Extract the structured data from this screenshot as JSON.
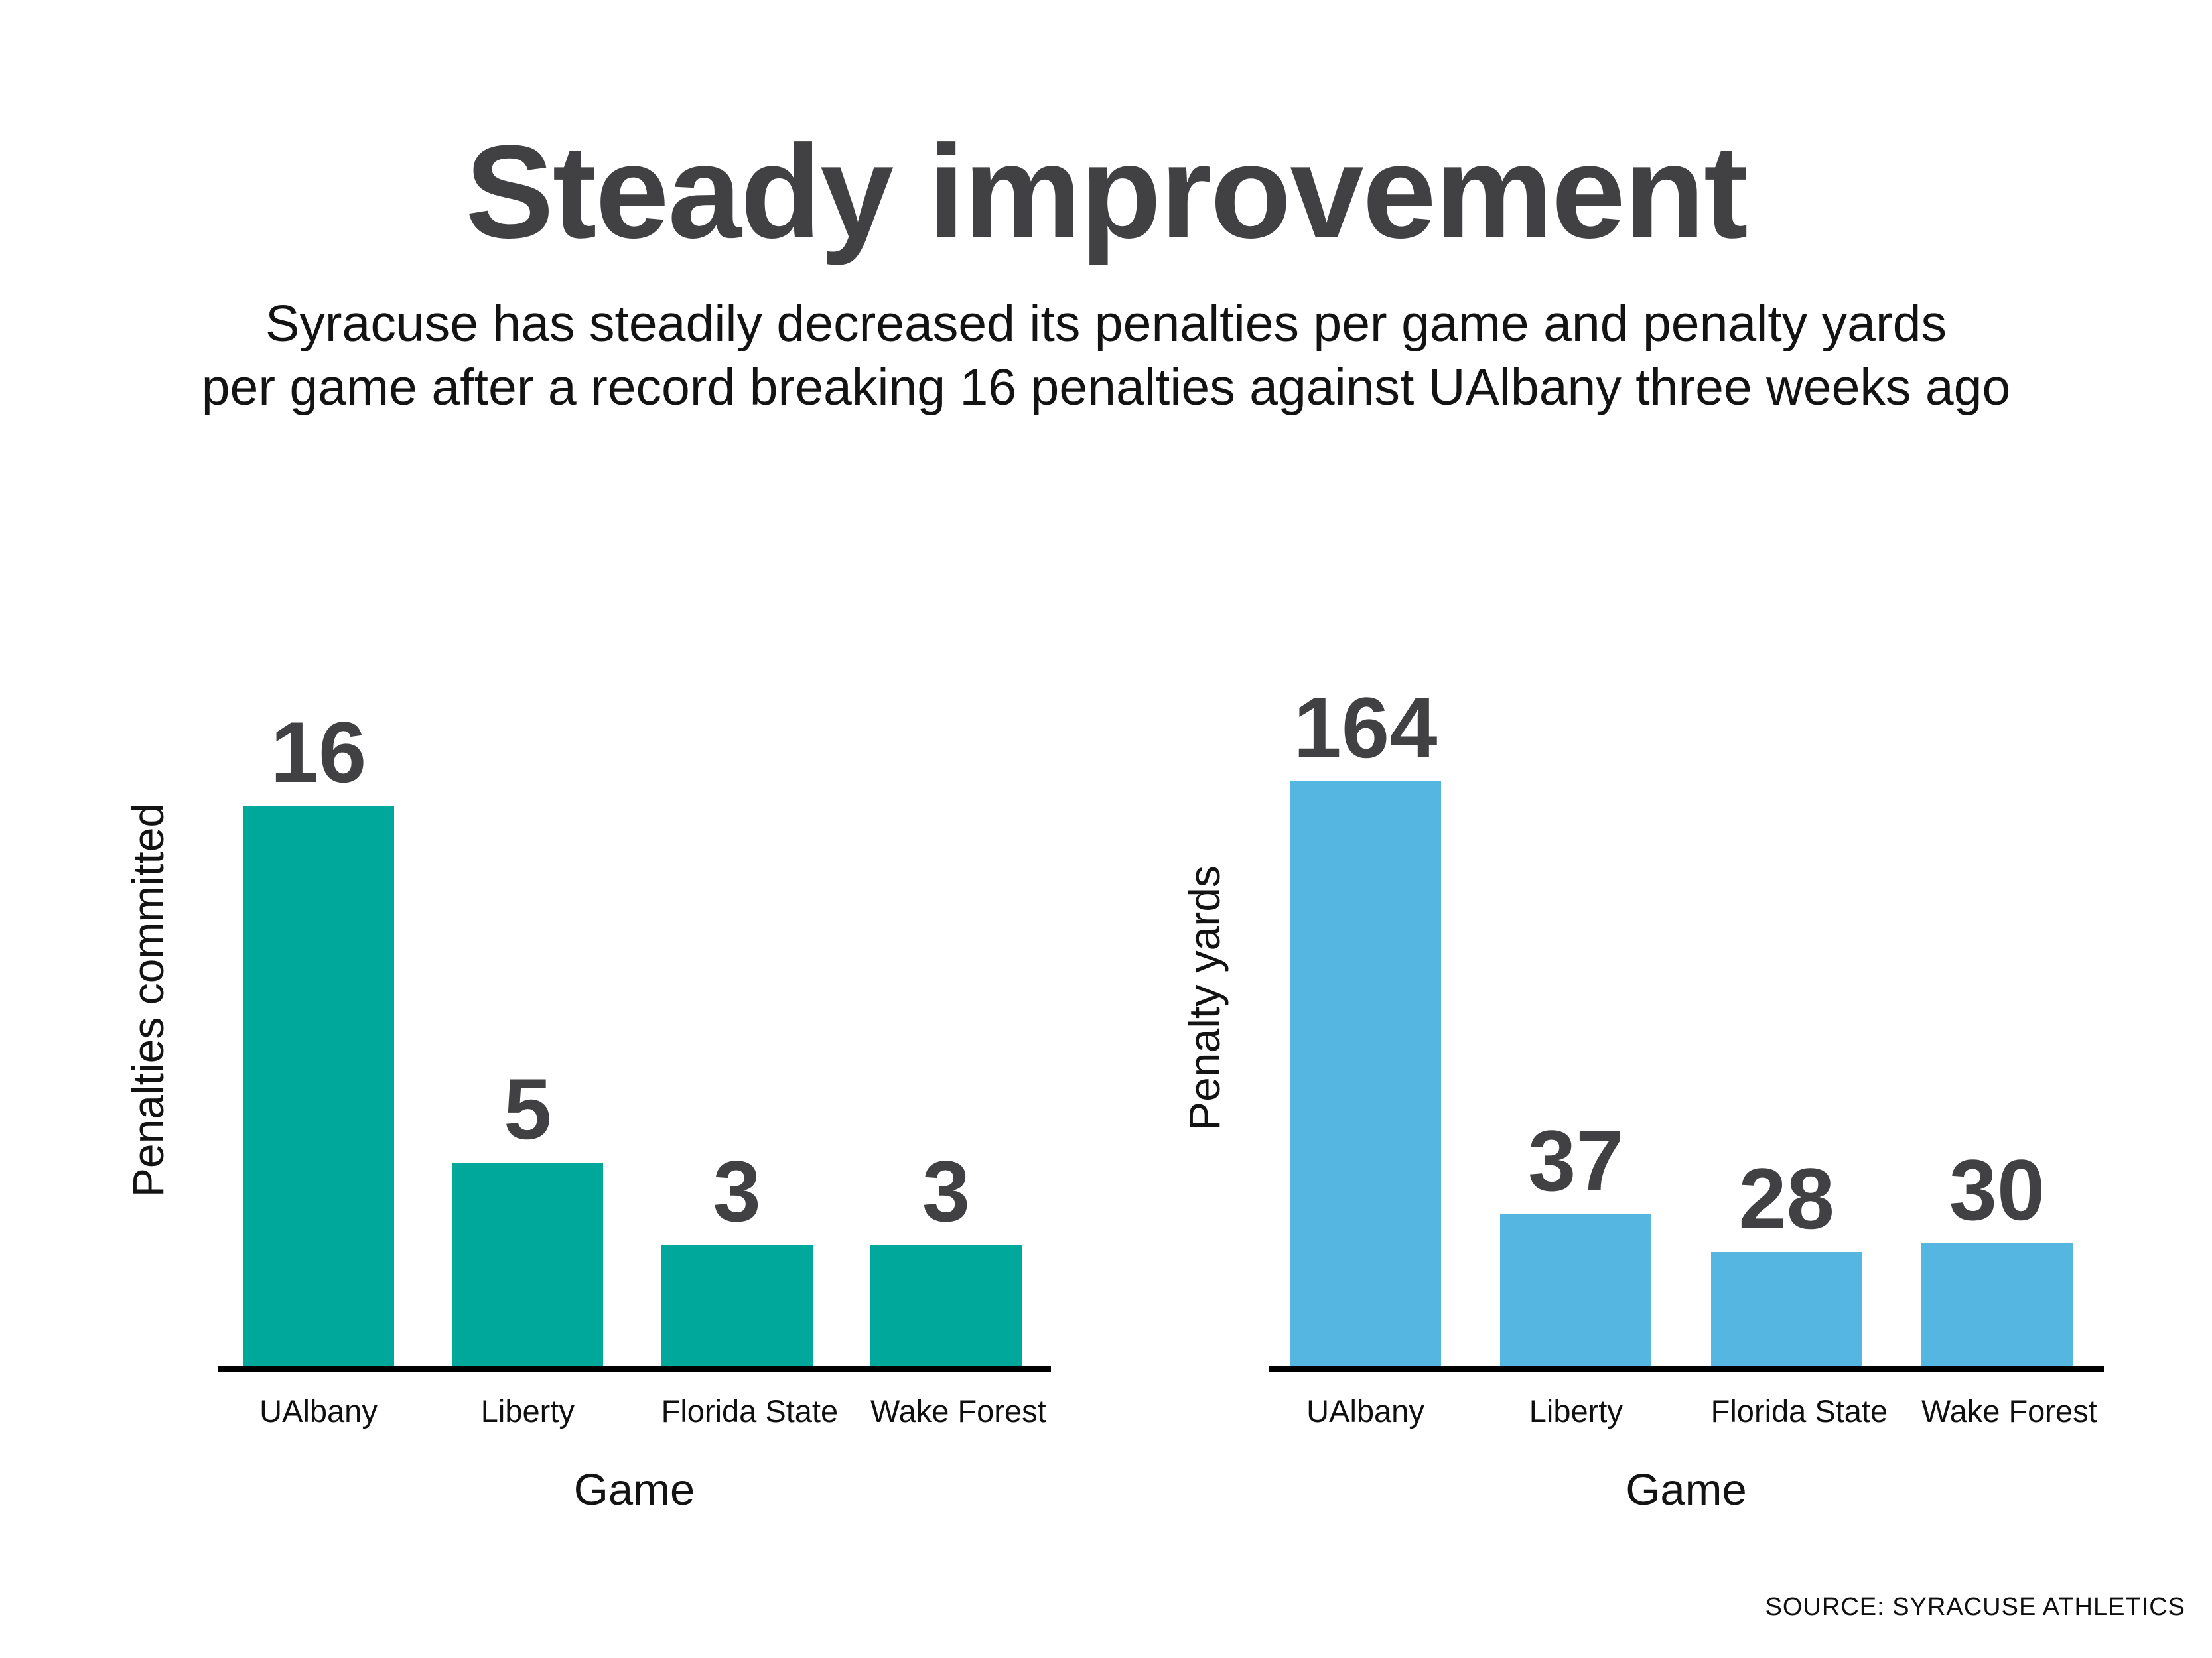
{
  "title": "Steady improvement",
  "subtitle": {
    "line1": "Syracuse has steadily decreased its penalties per game and penalty yards",
    "line2": "per game after a record breaking 16 penalties against UAlbany three weeks ago"
  },
  "source": "SOURCE: SYRACUSE ATHLETICS",
  "colors": {
    "title_gray": "#414042",
    "value_label_gray": "#414042",
    "teal": "#00a89c",
    "light_blue": "#55b7e1",
    "axis_black": "#000000"
  },
  "chart_data": [
    {
      "type": "bar",
      "ylabel": "Penalties committed",
      "xlabel": "Game",
      "categories": [
        "UAlbany",
        "Liberty",
        "Florida State",
        "Wake Forest"
      ],
      "values": [
        16,
        5,
        3,
        3
      ],
      "value_labels": [
        "16",
        "5",
        "3",
        "3"
      ],
      "bar_color": "#00a89c",
      "ylim": [
        0,
        16
      ],
      "grid": false,
      "legend": "none",
      "data_labels_position": "above-bars"
    },
    {
      "type": "bar",
      "ylabel": "Penalty yards",
      "xlabel": "Game",
      "categories": [
        "UAlbany",
        "Liberty",
        "Florida State",
        "Wake Forest"
      ],
      "values": [
        164,
        37,
        28,
        30
      ],
      "value_labels": [
        "164",
        "37",
        "28",
        "30"
      ],
      "bar_color": "#55b7e1",
      "ylim": [
        0,
        164
      ],
      "grid": false,
      "legend": "none",
      "data_labels_position": "above-bars"
    }
  ]
}
